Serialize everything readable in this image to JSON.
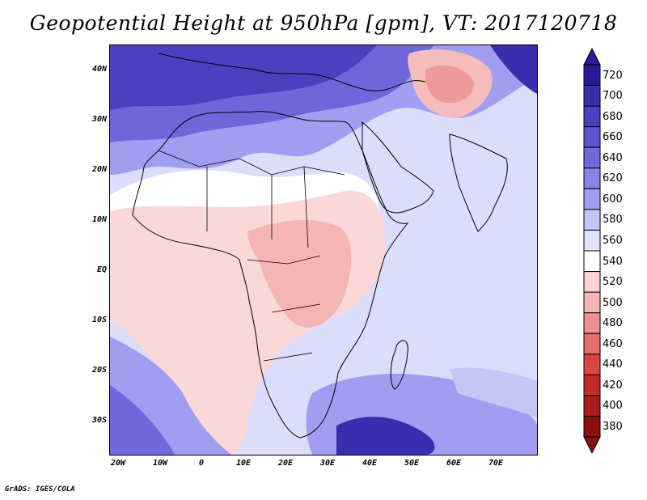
{
  "title": "Geopotential Height at 950hPa [gpm], VT: 2017120718",
  "credit": "GrADS: IGES/COLA",
  "axes": {
    "x_ticks": [
      "20W",
      "10W",
      "0",
      "10E",
      "20E",
      "30E",
      "40E",
      "50E",
      "60E",
      "70E"
    ],
    "y_ticks": [
      "40N",
      "30N",
      "20N",
      "10N",
      "EQ",
      "10S",
      "20S",
      "30S"
    ]
  },
  "colorbar": {
    "levels": [
      "720",
      "700",
      "680",
      "660",
      "640",
      "620",
      "600",
      "580",
      "560",
      "540",
      "520",
      "500",
      "480",
      "460",
      "440",
      "420",
      "400",
      "380"
    ],
    "colors": [
      "#2a1a9a",
      "#3a2db0",
      "#4b40c2",
      "#5e55d0",
      "#7068dc",
      "#8a83e6",
      "#a19df0",
      "#c4c6f6",
      "#e2e4fb",
      "#ffffff",
      "#fbd6d6",
      "#f5b5b5",
      "#ec8f8f",
      "#e36b6b",
      "#d94646",
      "#c62a2a",
      "#a91b1b",
      "#8c1010"
    ]
  },
  "map": {
    "lon_range": [
      -22,
      80
    ],
    "lat_range": [
      -37,
      45
    ],
    "palette": {
      "deep_blue": "#2e22a4",
      "blue": "#4a40c0",
      "mid_blue": "#7a72df",
      "light_blue": "#b8b6f2",
      "pale_blue": "#dcdcfb",
      "white": "#ffffff",
      "pale_red": "#fbd8d8",
      "red": "#f2aeae"
    }
  }
}
